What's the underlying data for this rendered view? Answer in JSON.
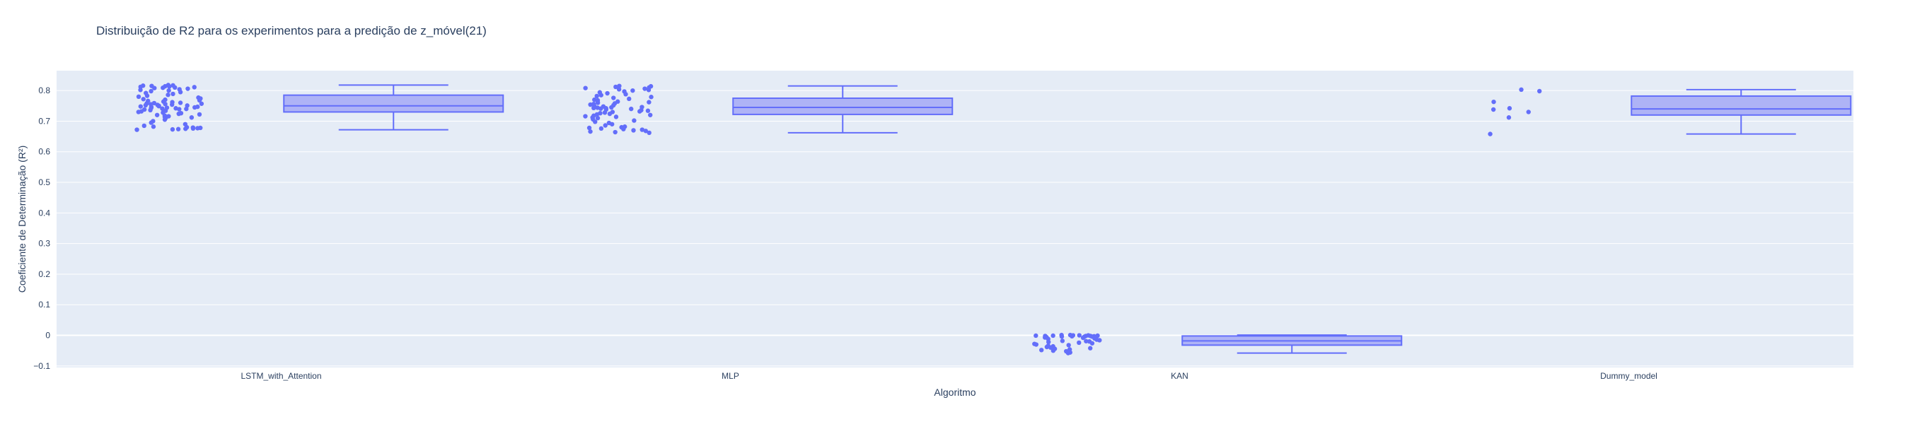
{
  "chart_data": {
    "type": "box",
    "title": "Distribuição de R2 para os experimentos para a predição de z_móvel(21)",
    "xlabel": "Algoritmo",
    "ylabel": "Coeficiente de Determinação (R²)",
    "ylim": [
      -0.105,
      0.865
    ],
    "yticks": [
      -0.1,
      0,
      0.1,
      0.2,
      0.3,
      0.4,
      0.5,
      0.6,
      0.7,
      0.8
    ],
    "ytick_labels": [
      "−0.1",
      "0",
      "0.1",
      "0.2",
      "0.3",
      "0.4",
      "0.5",
      "0.6",
      "0.7",
      "0.8"
    ],
    "grid": true,
    "legend": "none",
    "colors": {
      "plot_background": "#e5ecf6",
      "grid": "#ffffff",
      "box_line": "#636efa",
      "box_fill": "#a4a9f6",
      "points": "#636efa",
      "text": "#2a3f5f"
    },
    "categories": [
      "LSTM_with_Attention",
      "MLP",
      "KAN",
      "Dummy_model"
    ],
    "boxes": [
      {
        "category": "LSTM_with_Attention",
        "min": 0.672,
        "q1": 0.73,
        "median": 0.75,
        "q3": 0.785,
        "max": 0.818,
        "points": [
          0.818,
          0.817,
          0.816,
          0.815,
          0.814,
          0.813,
          0.812,
          0.811,
          0.81,
          0.809,
          0.808,
          0.806,
          0.804,
          0.802,
          0.8,
          0.798,
          0.795,
          0.792,
          0.789,
          0.786,
          0.783,
          0.78,
          0.777,
          0.774,
          0.772,
          0.77,
          0.768,
          0.766,
          0.764,
          0.762,
          0.76,
          0.759,
          0.758,
          0.757,
          0.756,
          0.755,
          0.754,
          0.753,
          0.752,
          0.751,
          0.75,
          0.749,
          0.748,
          0.747,
          0.746,
          0.745,
          0.744,
          0.743,
          0.742,
          0.741,
          0.74,
          0.739,
          0.738,
          0.736,
          0.734,
          0.732,
          0.73,
          0.728,
          0.726,
          0.724,
          0.722,
          0.72,
          0.718,
          0.716,
          0.714,
          0.712,
          0.71,
          0.705,
          0.7,
          0.695,
          0.69,
          0.685,
          0.682,
          0.68,
          0.679,
          0.678,
          0.677,
          0.676,
          0.675,
          0.674,
          0.673,
          0.672
        ]
      },
      {
        "category": "MLP",
        "min": 0.662,
        "q1": 0.722,
        "median": 0.745,
        "q3": 0.775,
        "max": 0.815,
        "points": [
          0.815,
          0.814,
          0.812,
          0.81,
          0.808,
          0.806,
          0.804,
          0.802,
          0.8,
          0.797,
          0.794,
          0.791,
          0.788,
          0.785,
          0.782,
          0.779,
          0.776,
          0.773,
          0.77,
          0.768,
          0.766,
          0.764,
          0.762,
          0.76,
          0.758,
          0.756,
          0.754,
          0.752,
          0.75,
          0.748,
          0.746,
          0.745,
          0.744,
          0.743,
          0.742,
          0.741,
          0.74,
          0.738,
          0.736,
          0.734,
          0.732,
          0.73,
          0.728,
          0.726,
          0.724,
          0.722,
          0.72,
          0.718,
          0.716,
          0.714,
          0.712,
          0.71,
          0.706,
          0.702,
          0.698,
          0.694,
          0.69,
          0.686,
          0.682,
          0.68,
          0.678,
          0.676,
          0.674,
          0.672,
          0.67,
          0.668,
          0.666,
          0.664,
          0.662
        ]
      },
      {
        "category": "KAN",
        "min": -0.058,
        "q1": -0.032,
        "median": -0.018,
        "q3": -0.002,
        "max": 0.001,
        "points": [
          0.001,
          0.001,
          0.0,
          0.0,
          0.0,
          -0.001,
          -0.001,
          -0.001,
          -0.002,
          -0.002,
          -0.002,
          -0.003,
          -0.003,
          -0.004,
          -0.004,
          -0.005,
          -0.006,
          -0.007,
          -0.008,
          -0.01,
          -0.012,
          -0.014,
          -0.016,
          -0.018,
          -0.019,
          -0.02,
          -0.022,
          -0.024,
          -0.026,
          -0.028,
          -0.03,
          -0.032,
          -0.034,
          -0.036,
          -0.038,
          -0.04,
          -0.042,
          -0.044,
          -0.046,
          -0.048,
          -0.05,
          -0.052,
          -0.054,
          -0.056,
          -0.058
        ]
      },
      {
        "category": "Dummy_model",
        "min": 0.658,
        "q1": 0.72,
        "median": 0.74,
        "q3": 0.782,
        "max": 0.803,
        "points": [
          0.803,
          0.798,
          0.763,
          0.742,
          0.738,
          0.73,
          0.712,
          0.658
        ]
      }
    ]
  }
}
